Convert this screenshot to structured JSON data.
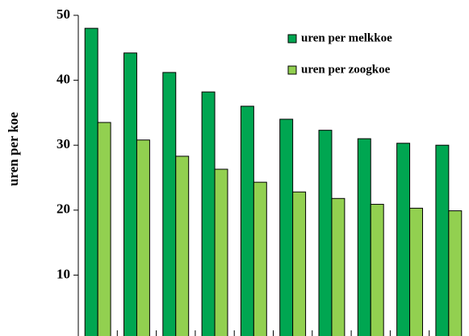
{
  "chart_data": {
    "type": "bar",
    "y_label": "uren per koe",
    "categories": [
      null,
      null,
      null,
      null,
      null,
      null,
      null,
      null,
      null,
      null
    ],
    "series": [
      {
        "name": "uren per melkkoe",
        "color": "#00a651",
        "values": [
          48,
          44.2,
          41.2,
          38.2,
          36,
          34,
          32.3,
          31,
          30.3,
          30
        ]
      },
      {
        "name": "uren per zoogkoe",
        "color": "#92d050",
        "values": [
          33.5,
          30.8,
          28.3,
          26.3,
          24.3,
          22.8,
          21.8,
          20.9,
          20.3,
          19.9
        ]
      }
    ],
    "ylim": [
      0,
      50
    ],
    "yticks": [
      10,
      20,
      30,
      40,
      50
    ],
    "grid": false
  }
}
